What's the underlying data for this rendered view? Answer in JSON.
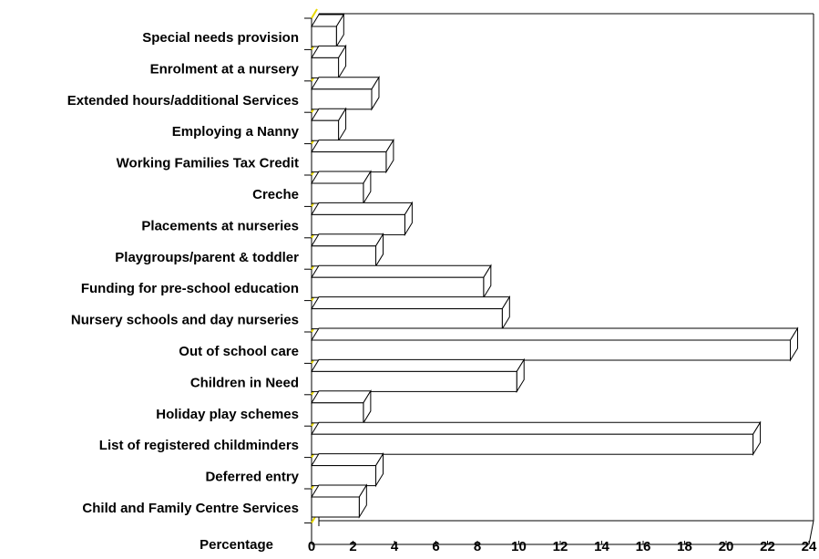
{
  "chart_data": {
    "type": "bar",
    "orientation": "horizontal",
    "three_d": true,
    "title": "",
    "xlabel": "Percentage",
    "ylabel": "",
    "xlim": [
      0,
      24
    ],
    "x_ticks": [
      0,
      2,
      4,
      6,
      8,
      10,
      12,
      14,
      16,
      18,
      20,
      22,
      24
    ],
    "grid": false,
    "legend": "none",
    "categories": [
      "Special needs provision",
      "Enrolment at a nursery",
      "Extended hours/additional Services",
      "Employing a Nanny",
      "Working Families Tax Credit",
      "Creche",
      "Placements at nurseries",
      "Playgroups/parent & toddler",
      "Funding for pre-school education",
      "Nursery schools and day nurseries",
      "Out of school care",
      "Children in Need",
      "Holiday play schemes",
      "List of registered childminders",
      "Deferred entry",
      "Child and Family Centre Services"
    ],
    "values": [
      1.2,
      1.3,
      2.9,
      1.3,
      3.6,
      2.5,
      4.5,
      3.1,
      8.3,
      9.2,
      23.1,
      9.9,
      2.5,
      21.3,
      3.1,
      2.3
    ],
    "colors": {
      "bar_fill": "#ffffff",
      "bar_stroke": "#000000",
      "floor_accent": "#e8d800",
      "axis": "#000000"
    }
  }
}
